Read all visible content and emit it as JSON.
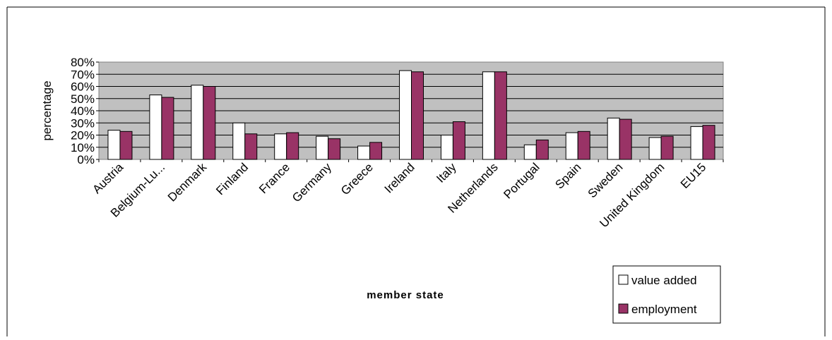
{
  "chart_data": {
    "type": "bar",
    "title": "",
    "xlabel": "member state",
    "ylabel": "percentage",
    "ylim": [
      0,
      80
    ],
    "yticks": [
      "0%",
      "10%",
      "20%",
      "30%",
      "40%",
      "50%",
      "60%",
      "70%",
      "80%"
    ],
    "grid": true,
    "legend_position": "bottom-right",
    "categories": [
      "Austria",
      "Belgium-Lu...",
      "Denmark",
      "Finland",
      "France",
      "Germany",
      "Greece",
      "Ireland",
      "Italy",
      "Netherlands",
      "Portugal",
      "Spain",
      "Sweden",
      "United Kingdom",
      "EU15"
    ],
    "series": [
      {
        "name": "value added",
        "color": "#ffffff",
        "values": [
          24,
          53,
          61,
          30,
          21,
          19,
          11,
          73,
          20,
          72,
          12,
          22,
          34,
          18,
          27
        ]
      },
      {
        "name": "employment",
        "color": "#993366",
        "values": [
          23,
          51,
          60,
          21,
          22,
          17,
          14,
          72,
          31,
          72,
          16,
          23,
          33,
          19,
          28
        ]
      }
    ],
    "plot_background": "#c0c0c0"
  }
}
